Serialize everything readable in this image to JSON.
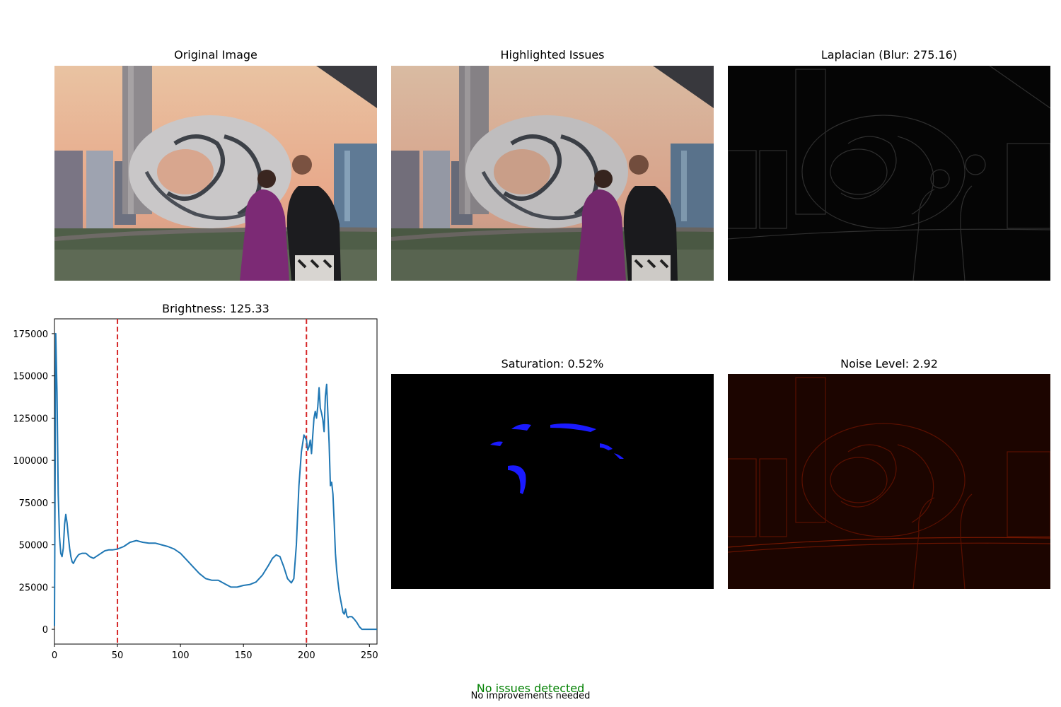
{
  "panels": {
    "original": {
      "title": "Original Image"
    },
    "highlighted": {
      "title": "Highlighted Issues"
    },
    "laplacian": {
      "title": "Laplacian (Blur: 275.16)"
    },
    "saturation": {
      "title": "Saturation: 0.52%"
    },
    "noise": {
      "title": "Noise Level: 2.92"
    }
  },
  "colors": {
    "line": "#1f77b4",
    "threshold": "#d62728",
    "status_ok": "#008000",
    "saturation_mark": "#1a1aff",
    "noise_tint": "#3a0a00"
  },
  "status": {
    "headline": "No issues detected",
    "subline": "No improvements needed"
  },
  "chart_data": {
    "type": "line",
    "title": "Brightness: 125.33",
    "xlabel": "",
    "ylabel": "",
    "xlim": [
      0,
      256
    ],
    "ylim": [
      -8750,
      183750
    ],
    "xticks": [
      0,
      50,
      100,
      150,
      200,
      250
    ],
    "yticks": [
      0,
      25000,
      50000,
      75000,
      100000,
      125000,
      150000,
      175000
    ],
    "grid": false,
    "thresholds": [
      50,
      200
    ],
    "series": [
      {
        "x": [
          0,
          1,
          2,
          3,
          4,
          5,
          6,
          7,
          8,
          9,
          10,
          11,
          12,
          13,
          14,
          15,
          16,
          17,
          18,
          19,
          20,
          22,
          25,
          28,
          31,
          34,
          37,
          40,
          43,
          46,
          50,
          55,
          60,
          65,
          70,
          75,
          80,
          85,
          90,
          95,
          100,
          105,
          110,
          115,
          120,
          125,
          130,
          135,
          140,
          145,
          150,
          155,
          160,
          165,
          170,
          173,
          176,
          179,
          182,
          185,
          188,
          190,
          192,
          194,
          196,
          198,
          200,
          201,
          202,
          203,
          204,
          205,
          206,
          207,
          208,
          209,
          210,
          211,
          212,
          213,
          214,
          215,
          216,
          217,
          218,
          219,
          220,
          221,
          222,
          223,
          224,
          225,
          226,
          227,
          228,
          229,
          230,
          231,
          232,
          233,
          234,
          235,
          236,
          238,
          240,
          242,
          244,
          246,
          248,
          250,
          253,
          256
        ],
        "y": [
          2000,
          175000,
          140000,
          80000,
          55000,
          45000,
          43000,
          48000,
          62000,
          68000,
          63000,
          55000,
          48000,
          43000,
          40000,
          39000,
          40500,
          42000,
          43000,
          44000,
          44500,
          45000,
          45000,
          43000,
          42000,
          43500,
          45000,
          46500,
          47000,
          47000,
          47500,
          49000,
          51500,
          52500,
          51500,
          51000,
          51000,
          50000,
          49000,
          47500,
          45000,
          41000,
          37000,
          33000,
          30000,
          29000,
          29000,
          27000,
          25000,
          25000,
          26000,
          26500,
          28000,
          32000,
          38000,
          42000,
          44000,
          43000,
          37000,
          30000,
          27500,
          30000,
          50000,
          85000,
          105000,
          115000,
          112000,
          106000,
          108000,
          112000,
          104000,
          115000,
          125000,
          129000,
          125000,
          132000,
          143000,
          131000,
          128000,
          124000,
          117000,
          138000,
          145000,
          128000,
          110000,
          85000,
          87000,
          80000,
          64000,
          45000,
          35000,
          28000,
          22000,
          18000,
          14000,
          10000,
          9000,
          12000,
          8000,
          7000,
          7500,
          7500,
          7500,
          6000,
          4000,
          1500,
          0,
          0,
          0,
          0,
          0,
          0
        ]
      }
    ]
  }
}
